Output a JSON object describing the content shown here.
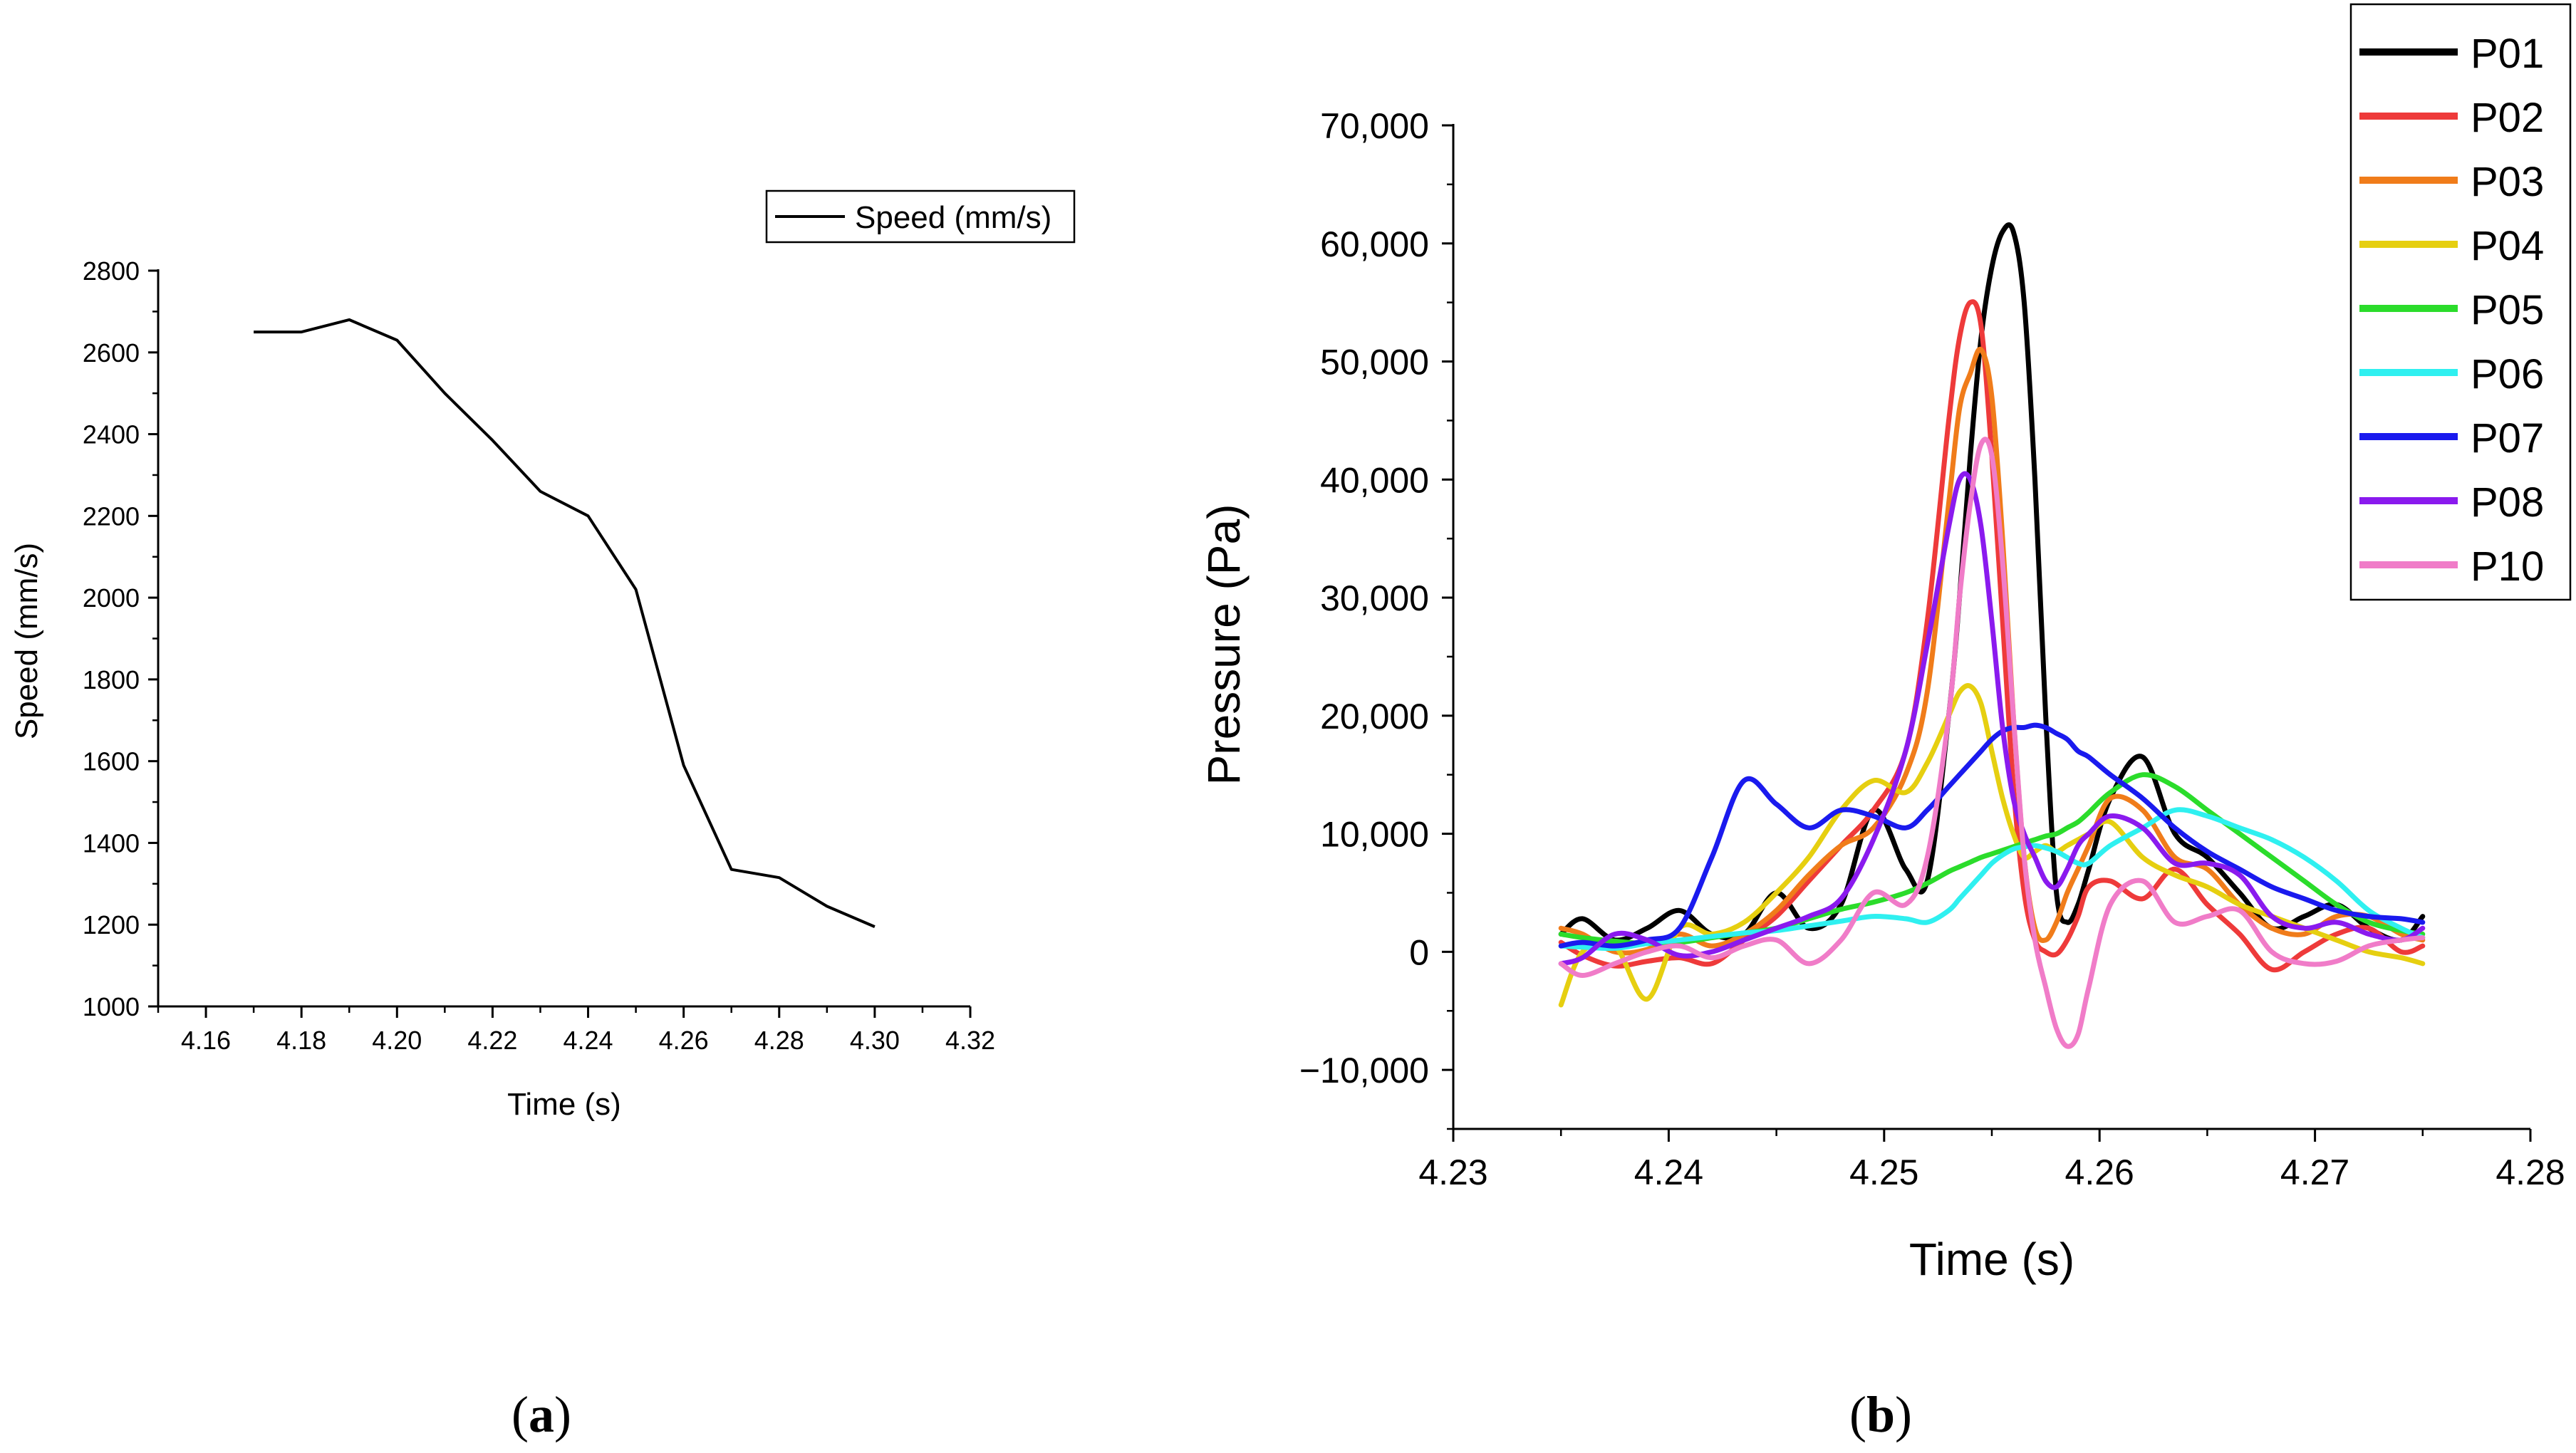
{
  "figure": {
    "panels": [
      {
        "label_open": "(",
        "label_letter": "a",
        "label_close": ")"
      },
      {
        "label_open": "(",
        "label_letter": "b",
        "label_close": ")"
      }
    ]
  },
  "chart_data": [
    {
      "type": "line",
      "xlabel": "Time (s)",
      "ylabel": "Speed (mm/s)",
      "xlim": [
        4.15,
        4.32
      ],
      "ylim": [
        1000,
        2800
      ],
      "x_ticks": [
        4.16,
        4.18,
        4.2,
        4.22,
        4.24,
        4.26,
        4.28,
        4.3,
        4.32
      ],
      "x_tick_labels": [
        "4.16",
        "4.18",
        "4.20",
        "4.22",
        "4.24",
        "4.26",
        "4.28",
        "4.30",
        "4.32"
      ],
      "y_ticks": [
        1000,
        1200,
        1400,
        1600,
        1800,
        2000,
        2200,
        2400,
        2600,
        2800
      ],
      "y_tick_labels": [
        "1000",
        "1200",
        "1400",
        "1600",
        "1800",
        "2000",
        "2200",
        "2400",
        "2600",
        "2800"
      ],
      "legend_position": "top-right",
      "series": [
        {
          "name": "Speed (mm/s)",
          "color": "#000000",
          "x": [
            4.17,
            4.18,
            4.19,
            4.2,
            4.21,
            4.22,
            4.23,
            4.24,
            4.25,
            4.26,
            4.27,
            4.28,
            4.29,
            4.3
          ],
          "values": [
            2650,
            2650,
            2680,
            2630,
            2500,
            2385,
            2260,
            2200,
            2020,
            1590,
            1335,
            1315,
            1245,
            1195
          ]
        }
      ]
    },
    {
      "type": "line",
      "xlabel": "Time (s)",
      "ylabel": "Pressure (Pa)",
      "xlim": [
        4.23,
        4.28
      ],
      "ylim": [
        -15000,
        70000
      ],
      "x_ticks": [
        4.23,
        4.24,
        4.25,
        4.26,
        4.27,
        4.28
      ],
      "x_tick_labels": [
        "4.23",
        "4.24",
        "4.25",
        "4.26",
        "4.27",
        "4.28"
      ],
      "y_ticks": [
        -10000,
        0,
        10000,
        20000,
        30000,
        40000,
        50000,
        60000,
        70000
      ],
      "y_tick_labels": [
        "−10,000",
        "0",
        "10,000",
        "20,000",
        "30,000",
        "40,000",
        "50,000",
        "60,000",
        "70,000"
      ],
      "legend_position": "top-right",
      "x": [
        4.235,
        4.236,
        4.2375,
        4.239,
        4.2405,
        4.242,
        4.2435,
        4.245,
        4.2465,
        4.248,
        4.2495,
        4.251,
        4.252,
        4.253,
        4.2535,
        4.254,
        4.2545,
        4.255,
        4.2555,
        4.256,
        4.2565,
        4.257,
        4.2575,
        4.258,
        4.2585,
        4.259,
        4.2595,
        4.2605,
        4.262,
        4.2635,
        4.265,
        4.2665,
        4.268,
        4.2695,
        4.271,
        4.2725,
        4.274,
        4.275
      ],
      "series": [
        {
          "name": "P01",
          "color": "#000000",
          "values": [
            1500,
            2800,
            1000,
            2000,
            3500,
            1500,
            1500,
            5000,
            2000,
            4000,
            12000,
            7000,
            6000,
            20000,
            30000,
            42000,
            52000,
            58000,
            61000,
            61000,
            55000,
            40000,
            20000,
            5000,
            2500,
            4000,
            7000,
            13000,
            16500,
            10000,
            8000,
            5000,
            2000,
            3000,
            4000,
            2000,
            1000,
            3000
          ]
        },
        {
          "name": "P02",
          "color": "#ee3a3a",
          "values": [
            800,
            -300,
            -1200,
            -800,
            -500,
            -1000,
            1000,
            3000,
            6000,
            9000,
            12000,
            17000,
            28000,
            45000,
            52000,
            55000,
            53000,
            42000,
            28000,
            14000,
            5000,
            1000,
            0,
            -200,
            1000,
            3000,
            5500,
            6000,
            4500,
            7000,
            4000,
            1500,
            -1500,
            0,
            1500,
            2000,
            0,
            500
          ]
        },
        {
          "name": "P03",
          "color": "#f07c1a",
          "values": [
            2000,
            1500,
            0,
            200,
            1500,
            500,
            1500,
            3500,
            6500,
            9000,
            10500,
            15000,
            22000,
            38000,
            46000,
            49000,
            51000,
            47000,
            35000,
            20000,
            8000,
            2000,
            1000,
            2500,
            5000,
            7000,
            9000,
            13000,
            12000,
            8000,
            7000,
            4000,
            2000,
            1500,
            3000,
            3000,
            1500,
            1000
          ]
        },
        {
          "name": "P04",
          "color": "#e6cf10",
          "values": [
            -4500,
            0,
            500,
            -4000,
            2000,
            1500,
            2500,
            5000,
            8000,
            12000,
            14500,
            13500,
            16000,
            20000,
            22000,
            22500,
            21000,
            17000,
            13000,
            10000,
            8000,
            8500,
            9000,
            8500,
            9000,
            9500,
            10000,
            11000,
            8000,
            6500,
            5500,
            4000,
            3000,
            2000,
            1000,
            0,
            -500,
            -1000
          ]
        },
        {
          "name": "P05",
          "color": "#2bdc2b",
          "values": [
            1500,
            1200,
            900,
            700,
            800,
            1200,
            1600,
            2000,
            2800,
            3600,
            4200,
            5000,
            5800,
            6800,
            7200,
            7600,
            8000,
            8300,
            8600,
            8900,
            9200,
            9500,
            9800,
            10000,
            10500,
            11000,
            11800,
            13500,
            15000,
            14000,
            12000,
            10000,
            8000,
            6000,
            4000,
            2500,
            1800,
            1500
          ]
        },
        {
          "name": "P06",
          "color": "#2ff0f0",
          "values": [
            500,
            400,
            300,
            700,
            1000,
            1300,
            1600,
            1800,
            2200,
            2600,
            3000,
            2800,
            2500,
            3500,
            4500,
            5500,
            6500,
            7500,
            8200,
            8700,
            8900,
            9000,
            8800,
            8500,
            8000,
            7500,
            7500,
            9000,
            10500,
            12000,
            11500,
            10500,
            9500,
            8000,
            6000,
            3500,
            2000,
            1200
          ]
        },
        {
          "name": "P07",
          "color": "#1a1aee",
          "values": [
            500,
            800,
            500,
            1000,
            2000,
            8000,
            14500,
            12500,
            10500,
            12000,
            11500,
            10500,
            12000,
            14000,
            15000,
            16000,
            17000,
            18000,
            18700,
            19000,
            19000,
            19200,
            19000,
            18500,
            18000,
            17000,
            16500,
            15000,
            13000,
            10500,
            8500,
            7000,
            5500,
            4500,
            3500,
            3000,
            2800,
            2500
          ]
        },
        {
          "name": "P08",
          "color": "#8a1aee",
          "values": [
            -1000,
            -500,
            1500,
            1000,
            -300,
            0,
            1000,
            2000,
            3000,
            4500,
            9500,
            17000,
            26000,
            36000,
            40000,
            40000,
            36000,
            28000,
            19000,
            13000,
            10000,
            8000,
            6000,
            5500,
            7000,
            9000,
            10000,
            11500,
            10500,
            7500,
            7500,
            6500,
            3000,
            2000,
            2500,
            1500,
            1000,
            2000
          ]
        },
        {
          "name": "P10",
          "color": "#f07cc8",
          "values": [
            -1000,
            -2000,
            -1000,
            0,
            500,
            -500,
            500,
            1000,
            -1000,
            1000,
            5000,
            4000,
            8000,
            20000,
            30000,
            38000,
            43000,
            42000,
            33000,
            20000,
            8000,
            1000,
            -3000,
            -6500,
            -8000,
            -7000,
            -3000,
            4000,
            6000,
            2500,
            3000,
            3500,
            0,
            -1000,
            -800,
            500,
            1000,
            1200
          ]
        }
      ]
    }
  ]
}
